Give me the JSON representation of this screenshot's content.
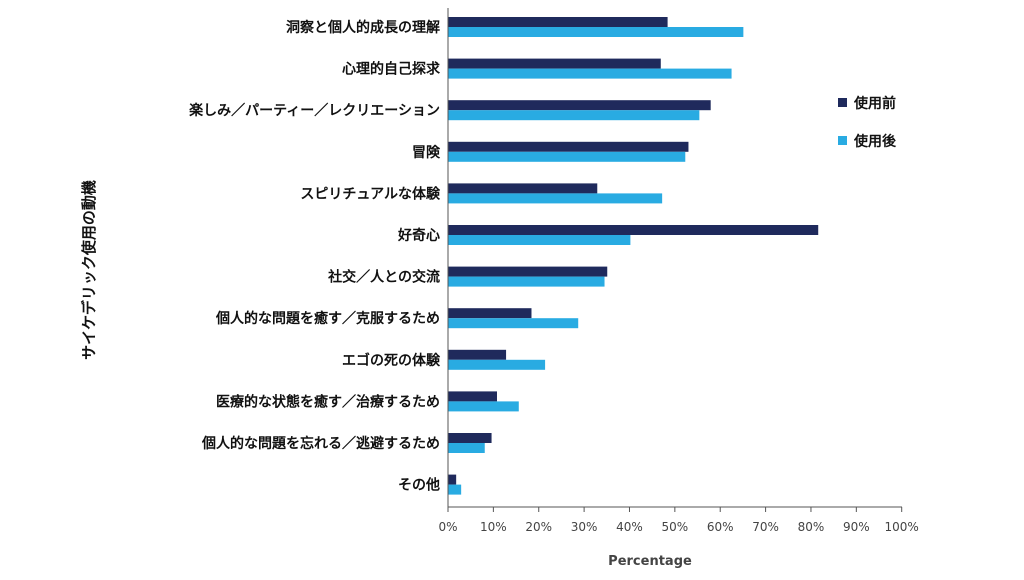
{
  "chart_data": {
    "type": "bar",
    "orientation": "horizontal",
    "title": "",
    "xlabel": "Percentage",
    "ylabel": "サイケデリック使用の動機",
    "xlim": [
      0,
      100
    ],
    "xticks": [
      "0%",
      "10%",
      "20%",
      "30%",
      "40%",
      "50%",
      "60%",
      "70%",
      "80%",
      "90%",
      "100%"
    ],
    "grid": false,
    "legend_position": "right",
    "categories": [
      "洞察と個人的成長の理解",
      "心理的自己探求",
      "楽しみ／パーティー／レクリエーション",
      "冒険",
      "スピリチュアルな体験",
      "好奇心",
      "社交／人との交流",
      "個人的な問題を癒す／克服するため",
      "エゴの死の体験",
      "医療的な状態を癒す／治療するため",
      "個人的な問題を忘れる／逃避するため",
      "その他"
    ],
    "series": [
      {
        "name": "使用前",
        "color": "#1f2a5c",
        "values": [
          48.4,
          46.9,
          57.9,
          53.0,
          32.9,
          81.6,
          35.1,
          18.4,
          12.8,
          10.8,
          9.6,
          1.8
        ]
      },
      {
        "name": "使用後",
        "color": "#29abe2",
        "values": [
          65.1,
          62.5,
          55.4,
          52.3,
          47.2,
          40.2,
          34.5,
          28.7,
          21.4,
          15.6,
          8.1,
          2.9
        ]
      }
    ]
  }
}
